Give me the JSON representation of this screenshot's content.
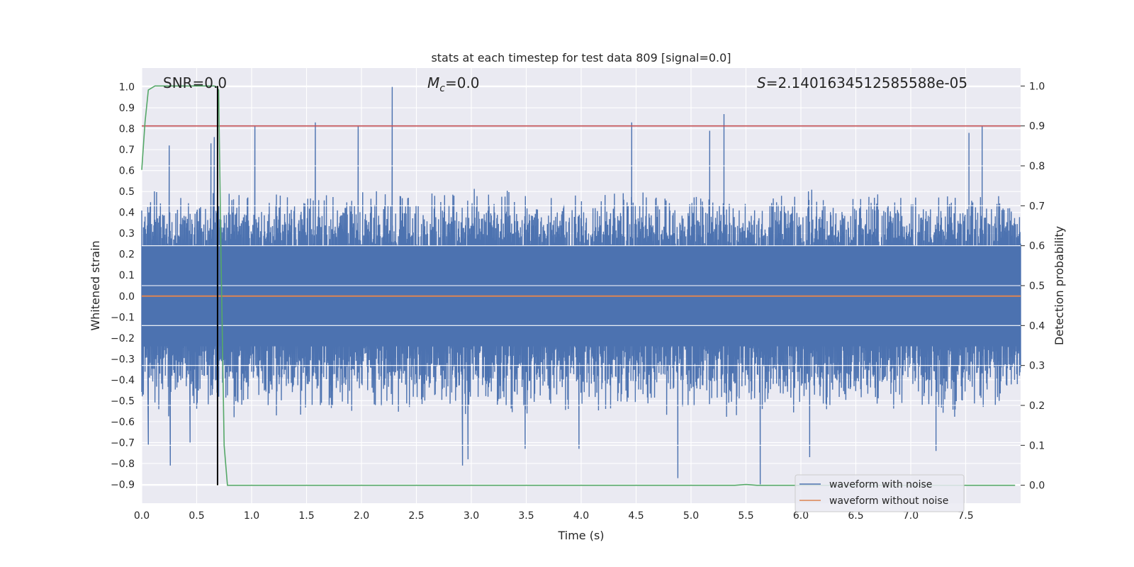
{
  "chart_data": {
    "type": "line",
    "title": "stats at each timestep for test data 809 [signal=0.0]",
    "xlabel": "Time (s)",
    "ylabel_left": "Whitened strain",
    "ylabel_right": "Detection probability",
    "xlim": [
      0.0,
      8.0
    ],
    "ylim_left": [
      -0.99,
      1.09
    ],
    "ylim_right": [
      -0.045,
      1.045
    ],
    "x_ticks": [
      "0.0",
      "0.5",
      "1.0",
      "1.5",
      "2.0",
      "2.5",
      "3.0",
      "3.5",
      "4.0",
      "4.5",
      "5.0",
      "5.5",
      "6.0",
      "6.5",
      "7.0",
      "7.5"
    ],
    "x_tick_values": [
      0.0,
      0.5,
      1.0,
      1.5,
      2.0,
      2.5,
      3.0,
      3.5,
      4.0,
      4.5,
      5.0,
      5.5,
      6.0,
      6.5,
      7.0,
      7.5
    ],
    "y_left_ticks": [
      "1.0",
      "0.9",
      "0.8",
      "0.7",
      "0.6",
      "0.5",
      "0.4",
      "0.3",
      "0.2",
      "0.1",
      "0.0",
      "−0.1",
      "−0.2",
      "−0.3",
      "−0.4",
      "−0.5",
      "−0.6",
      "−0.7",
      "−0.8",
      "−0.9"
    ],
    "y_left_tick_values": [
      1.0,
      0.9,
      0.8,
      0.7,
      0.6,
      0.5,
      0.4,
      0.3,
      0.2,
      0.1,
      0.0,
      -0.1,
      -0.2,
      -0.3,
      -0.4,
      -0.5,
      -0.6,
      -0.7,
      -0.8,
      -0.9
    ],
    "y_right_ticks": [
      "1.0",
      "0.9",
      "0.8",
      "0.7",
      "0.6",
      "0.5",
      "0.4",
      "0.3",
      "0.2",
      "0.1",
      "0.0"
    ],
    "y_right_tick_values": [
      1.0,
      0.9,
      0.8,
      0.7,
      0.6,
      0.5,
      0.4,
      0.3,
      0.2,
      0.1,
      0.0
    ],
    "grid": true,
    "legend_placement": "lower-right",
    "annotations": {
      "snr": "SNR=0.0",
      "mc_symbol": "M",
      "mc_sub": "c",
      "mc_value": "=0.0",
      "s_symbol": "S",
      "s_value": "=2.1401634512585588e-05"
    },
    "series": [
      {
        "name": "waveform with noise",
        "axis": "left",
        "color": "#4c72b0",
        "description_hint": "dense noisy strain, most samples within ±0.4, peaks up to ~1.0 and down to ~-0.9",
        "x_range": [
          0.0,
          8.0
        ],
        "sample_count": 1600,
        "envelope": {
          "typical_max": 0.45,
          "typical_min": -0.5,
          "spikes": [
            {
              "x": 0.03,
              "y": 0.38
            },
            {
              "x": 0.06,
              "y": -0.71
            },
            {
              "x": 0.25,
              "y": 0.72
            },
            {
              "x": 0.26,
              "y": -0.81
            },
            {
              "x": 0.44,
              "y": -0.7
            },
            {
              "x": 0.63,
              "y": 0.73
            },
            {
              "x": 0.66,
              "y": 0.76
            },
            {
              "x": 0.69,
              "y": -0.42
            },
            {
              "x": 1.03,
              "y": 0.81
            },
            {
              "x": 1.58,
              "y": 0.83
            },
            {
              "x": 1.97,
              "y": 0.81
            },
            {
              "x": 2.28,
              "y": 1.0
            },
            {
              "x": 2.92,
              "y": -0.81
            },
            {
              "x": 2.97,
              "y": -0.78
            },
            {
              "x": 3.49,
              "y": -0.73
            },
            {
              "x": 3.98,
              "y": -0.73
            },
            {
              "x": 4.46,
              "y": 0.83
            },
            {
              "x": 4.88,
              "y": -0.87
            },
            {
              "x": 5.3,
              "y": 0.87
            },
            {
              "x": 5.17,
              "y": 0.79
            },
            {
              "x": 5.63,
              "y": -0.9
            },
            {
              "x": 6.08,
              "y": -0.77
            },
            {
              "x": 7.23,
              "y": -0.74
            },
            {
              "x": 7.53,
              "y": 0.78
            },
            {
              "x": 7.65,
              "y": 0.81
            },
            {
              "x": 7.9,
              "y": 0.42
            }
          ]
        }
      },
      {
        "name": "waveform without noise",
        "axis": "left",
        "color": "#dd8452",
        "x": [
          0.0,
          8.0
        ],
        "y": [
          0.0,
          0.0
        ]
      },
      {
        "name": "",
        "axis": "right",
        "color": "#55a868",
        "x": [
          0.0,
          0.03,
          0.06,
          0.12,
          0.2,
          0.4,
          0.6,
          0.66,
          0.68,
          0.7,
          0.72,
          0.75,
          0.78,
          1.0,
          2.0,
          3.0,
          4.0,
          5.0,
          5.4,
          5.5,
          5.6,
          6.0,
          7.0,
          7.95
        ],
        "y": [
          0.79,
          0.91,
          0.99,
          1.0,
          1.0,
          1.0,
          1.0,
          1.0,
          0.998,
          0.99,
          0.6,
          0.1,
          0.0,
          0.0,
          0.0,
          0.0,
          0.0,
          0.0,
          0.0,
          0.002,
          0.0,
          0.0,
          0.0,
          0.0
        ]
      }
    ],
    "threshold_line": {
      "axis": "right",
      "y": 0.9,
      "color": "#c44e52"
    },
    "marker_line": {
      "x": 0.69,
      "y_range_right": [
        0.0,
        1.0
      ],
      "color": "#000000"
    }
  },
  "colors": {
    "plot_bg": "#eaeaf2",
    "grid": "#ffffff"
  }
}
